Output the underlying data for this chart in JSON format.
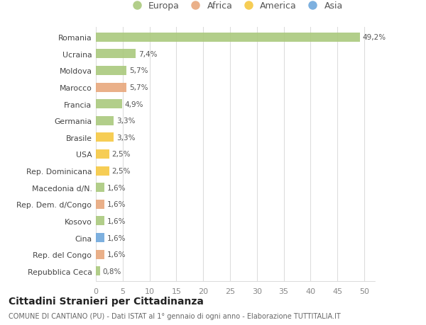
{
  "categories": [
    "Repubblica Ceca",
    "Rep. del Congo",
    "Cina",
    "Kosovo",
    "Rep. Dem. d/Congo",
    "Macedonia d/N.",
    "Rep. Dominicana",
    "USA",
    "Brasile",
    "Germania",
    "Francia",
    "Marocco",
    "Moldova",
    "Ucraina",
    "Romania"
  ],
  "values": [
    0.8,
    1.6,
    1.6,
    1.6,
    1.6,
    1.6,
    2.5,
    2.5,
    3.3,
    3.3,
    4.9,
    5.7,
    5.7,
    7.4,
    49.2
  ],
  "labels": [
    "0,8%",
    "1,6%",
    "1,6%",
    "1,6%",
    "1,6%",
    "1,6%",
    "2,5%",
    "2,5%",
    "3,3%",
    "3,3%",
    "4,9%",
    "5,7%",
    "5,7%",
    "7,4%",
    "49,2%"
  ],
  "colors": [
    "#aac97d",
    "#e8a87c",
    "#6fa8dc",
    "#aac97d",
    "#e8a87c",
    "#aac97d",
    "#f5c842",
    "#f5c842",
    "#f5c842",
    "#aac97d",
    "#aac97d",
    "#e8a87c",
    "#aac97d",
    "#aac97d",
    "#aac97d"
  ],
  "legend_labels": [
    "Europa",
    "Africa",
    "America",
    "Asia"
  ],
  "legend_colors": [
    "#aac97d",
    "#e8a87c",
    "#f5c842",
    "#6fa8dc"
  ],
  "title": "Cittadini Stranieri per Cittadinanza",
  "subtitle": "COMUNE DI CANTIANO (PU) - Dati ISTAT al 1° gennaio di ogni anno - Elaborazione TUTTITALIA.IT",
  "xlim": [
    0,
    52
  ],
  "xticks": [
    0,
    5,
    10,
    15,
    20,
    25,
    30,
    35,
    40,
    45,
    50
  ],
  "background_color": "#ffffff",
  "grid_color": "#dddddd",
  "bar_height": 0.55
}
